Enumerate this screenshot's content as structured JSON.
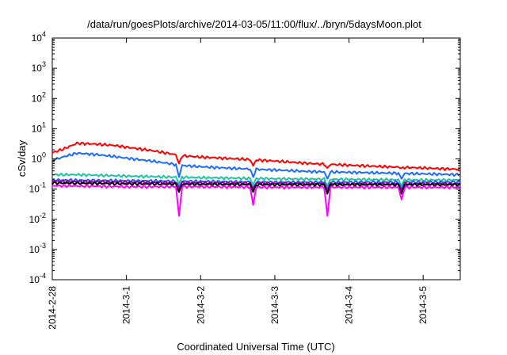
{
  "chart_data": {
    "type": "line",
    "title": "/data/run/goesPlots/archive/2014-03-05/11:00/flux/../bryn/5daysMoon.plot",
    "xlabel": "Coordinated Universal Time (UTC)",
    "ylabel": "cSv/day",
    "yscale": "log",
    "ylim": [
      0.0001,
      10000
    ],
    "xlim": [
      "2014-02-28",
      "2014-03-05T12:00"
    ],
    "grid": false,
    "legend": "none",
    "y_ticks": [
      {
        "value": 0.0001,
        "base": "10",
        "exp": "-4"
      },
      {
        "value": 0.001,
        "base": "10",
        "exp": "-3"
      },
      {
        "value": 0.01,
        "base": "10",
        "exp": "-2"
      },
      {
        "value": 0.1,
        "base": "10",
        "exp": "-1"
      },
      {
        "value": 1,
        "base": "10",
        "exp": "0"
      },
      {
        "value": 10,
        "base": "10",
        "exp": "1"
      },
      {
        "value": 100,
        "base": "10",
        "exp": "2"
      },
      {
        "value": 1000,
        "base": "10",
        "exp": "3"
      },
      {
        "value": 10000,
        "base": "10",
        "exp": "4"
      }
    ],
    "x_ticks": [
      {
        "value": "2014-02-28",
        "label": "2014-2-28"
      },
      {
        "value": "2014-03-01",
        "label": "2014-3-1"
      },
      {
        "value": "2014-03-02",
        "label": "2014-3-2"
      },
      {
        "value": "2014-03-03",
        "label": "2014-3-3"
      },
      {
        "value": "2014-03-04",
        "label": "2014-3-4"
      },
      {
        "value": "2014-03-05",
        "label": "2014-3-5"
      }
    ],
    "series": [
      {
        "color": "#ff0000",
        "points": [
          [
            "2014-02-28T00:00",
            1.6
          ],
          [
            "2014-02-28T04:00",
            2.2
          ],
          [
            "2014-02-28T08:00",
            3.3
          ],
          [
            "2014-02-28T14:00",
            3.1
          ],
          [
            "2014-02-28T20:00",
            2.8
          ],
          [
            "2014-03-01T02:00",
            2.3
          ],
          [
            "2014-03-01T08:00",
            1.9
          ],
          [
            "2014-03-01T14:00",
            1.5
          ],
          [
            "2014-03-01T17:00",
            1.3
          ],
          [
            "2014-03-02T00:00",
            1.15
          ],
          [
            "2014-03-02T12:00",
            1.0
          ],
          [
            "2014-03-03T00:00",
            0.85
          ],
          [
            "2014-03-03T12:00",
            0.7
          ],
          [
            "2014-03-04T00:00",
            0.62
          ],
          [
            "2014-03-04T12:00",
            0.55
          ],
          [
            "2014-03-05T00:00",
            0.5
          ],
          [
            "2014-03-05T12:00",
            0.45
          ]
        ]
      },
      {
        "color": "#1e6cff",
        "points": [
          [
            "2014-02-28T00:00",
            0.9
          ],
          [
            "2014-02-28T04:00",
            1.2
          ],
          [
            "2014-02-28T08:00",
            1.55
          ],
          [
            "2014-02-28T14:00",
            1.4
          ],
          [
            "2014-02-28T20:00",
            1.2
          ],
          [
            "2014-03-01T02:00",
            1.0
          ],
          [
            "2014-03-01T08:00",
            0.85
          ],
          [
            "2014-03-01T14:00",
            0.7
          ],
          [
            "2014-03-01T17:00",
            0.62
          ],
          [
            "2014-03-02T00:00",
            0.55
          ],
          [
            "2014-03-02T12:00",
            0.48
          ],
          [
            "2014-03-03T00:00",
            0.43
          ],
          [
            "2014-03-03T12:00",
            0.38
          ],
          [
            "2014-03-04T00:00",
            0.36
          ],
          [
            "2014-03-04T12:00",
            0.34
          ],
          [
            "2014-03-05T00:00",
            0.32
          ],
          [
            "2014-03-05T12:00",
            0.3
          ]
        ]
      },
      {
        "color": "#1fc4a0",
        "points": [
          [
            "2014-02-28T00:00",
            0.3
          ],
          [
            "2014-02-28T08:00",
            0.3
          ],
          [
            "2014-03-01T00:00",
            0.27
          ],
          [
            "2014-03-02T00:00",
            0.24
          ],
          [
            "2014-03-03T00:00",
            0.22
          ],
          [
            "2014-03-04T00:00",
            0.21
          ],
          [
            "2014-03-05T00:00",
            0.2
          ],
          [
            "2014-03-05T12:00",
            0.2
          ]
        ]
      },
      {
        "color": "#3355ff",
        "points": [
          [
            "2014-02-28T00:00",
            0.2
          ],
          [
            "2014-03-01T00:00",
            0.19
          ],
          [
            "2014-03-02T00:00",
            0.18
          ],
          [
            "2014-03-03T00:00",
            0.17
          ],
          [
            "2014-03-04T00:00",
            0.17
          ],
          [
            "2014-03-05T12:00",
            0.17
          ]
        ]
      },
      {
        "color": "#990099",
        "points": [
          [
            "2014-02-28T00:00",
            0.18
          ],
          [
            "2014-03-01T00:00",
            0.17
          ],
          [
            "2014-03-02T00:00",
            0.16
          ],
          [
            "2014-03-03T00:00",
            0.155
          ],
          [
            "2014-03-04T00:00",
            0.15
          ],
          [
            "2014-03-05T12:00",
            0.15
          ]
        ]
      },
      {
        "color": "#000000",
        "points": [
          [
            "2014-02-28T00:00",
            0.16
          ],
          [
            "2014-03-01T00:00",
            0.15
          ],
          [
            "2014-03-02T00:00",
            0.145
          ],
          [
            "2014-03-03T00:00",
            0.14
          ],
          [
            "2014-03-04T00:00",
            0.14
          ],
          [
            "2014-03-05T12:00",
            0.14
          ]
        ]
      },
      {
        "color": "#ff00ff",
        "points": [
          [
            "2014-02-28T00:00",
            0.13
          ],
          [
            "2014-03-01T00:00",
            0.12
          ],
          [
            "2014-03-02T00:00",
            0.12
          ],
          [
            "2014-03-03T00:00",
            0.115
          ],
          [
            "2014-03-04T00:00",
            0.115
          ],
          [
            "2014-03-05T12:00",
            0.115
          ]
        ]
      }
    ],
    "dips": [
      {
        "time": "2014-03-01T17:00",
        "values": [
          0.7,
          0.25,
          0.15,
          0.12,
          0.1,
          0.08,
          0.013
        ]
      },
      {
        "time": "2014-03-02T17:00",
        "values": [
          0.6,
          0.25,
          0.14,
          0.11,
          0.1,
          0.08,
          0.03
        ]
      },
      {
        "time": "2014-03-03T17:00",
        "values": [
          0.5,
          0.22,
          0.13,
          0.1,
          0.09,
          0.07,
          0.013
        ]
      },
      {
        "time": "2014-03-04T17:00",
        "values": [
          0.5,
          0.22,
          0.13,
          0.1,
          0.09,
          0.07,
          0.045
        ]
      }
    ]
  }
}
